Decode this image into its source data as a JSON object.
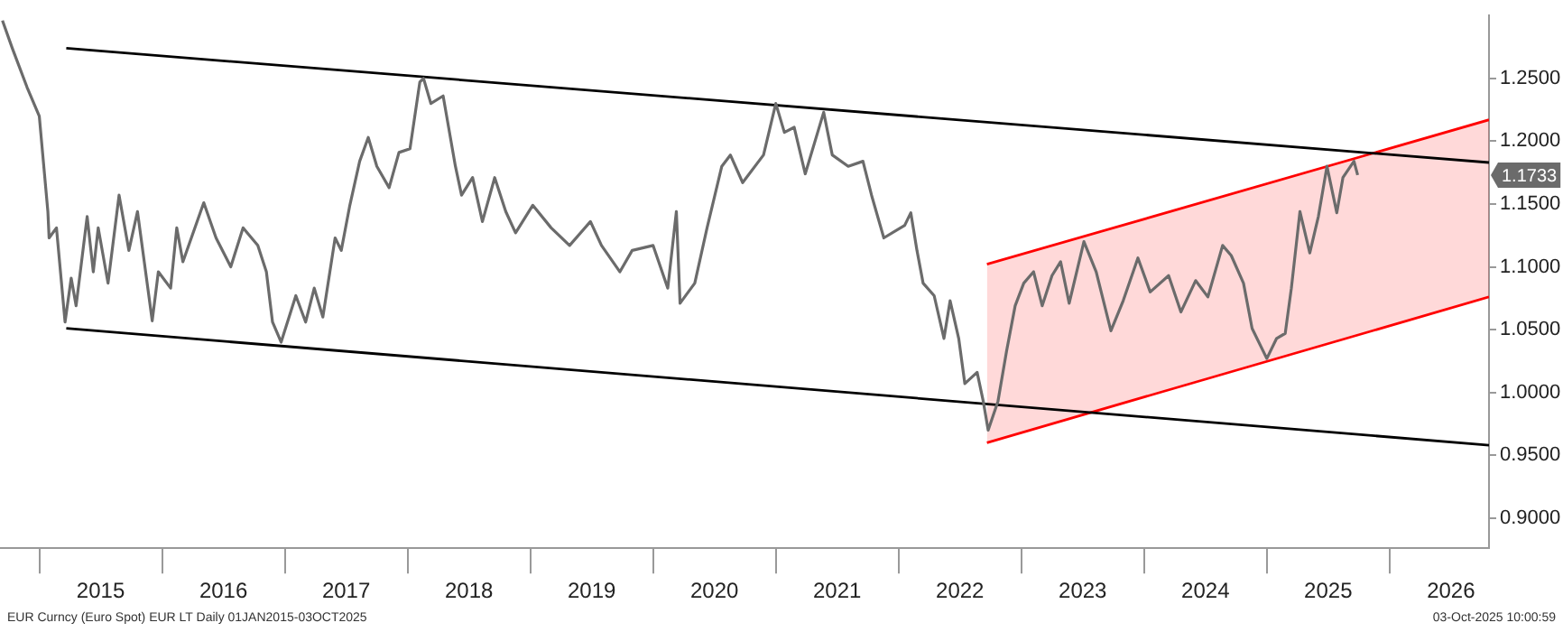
{
  "chart_data": {
    "type": "line",
    "xlim": [
      2014.68,
      2026.81
    ],
    "ylim": [
      0.876,
      1.3
    ],
    "xticks": [
      {
        "value": 2015,
        "label": null
      },
      {
        "value": 2015.5,
        "label": "2015"
      },
      {
        "value": 2016,
        "label": null
      },
      {
        "value": 2016.5,
        "label": "2016"
      },
      {
        "value": 2017,
        "label": null
      },
      {
        "value": 2017.5,
        "label": "2017"
      },
      {
        "value": 2018,
        "label": null
      },
      {
        "value": 2018.5,
        "label": "2018"
      },
      {
        "value": 2019,
        "label": null
      },
      {
        "value": 2019.5,
        "label": "2019"
      },
      {
        "value": 2020,
        "label": null
      },
      {
        "value": 2020.5,
        "label": "2020"
      },
      {
        "value": 2021,
        "label": null
      },
      {
        "value": 2021.5,
        "label": "2021"
      },
      {
        "value": 2022,
        "label": null
      },
      {
        "value": 2022.5,
        "label": "2022"
      },
      {
        "value": 2023,
        "label": null
      },
      {
        "value": 2023.5,
        "label": "2023"
      },
      {
        "value": 2024,
        "label": null
      },
      {
        "value": 2024.5,
        "label": "2024"
      },
      {
        "value": 2025,
        "label": null
      },
      {
        "value": 2025.5,
        "label": "2025"
      },
      {
        "value": 2026,
        "label": null
      },
      {
        "value": 2026.5,
        "label": "2026"
      }
    ],
    "yticks": [
      {
        "value": 0.9,
        "label": "0.9000"
      },
      {
        "value": 0.95,
        "label": "0.9500"
      },
      {
        "value": 1.0,
        "label": "1.0000"
      },
      {
        "value": 1.05,
        "label": "1.0500"
      },
      {
        "value": 1.1,
        "label": "1.1000"
      },
      {
        "value": 1.15,
        "label": "1.1500"
      },
      {
        "value": 1.2,
        "label": "1.2000"
      },
      {
        "value": 1.25,
        "label": "1.2500"
      }
    ],
    "grid": false,
    "legend": false,
    "marker": "none",
    "line_style": "solid",
    "series": [
      {
        "color": "#6b6b6b",
        "x": [
          2014.7,
          2014.78,
          2014.9,
          2015.0,
          2015.07,
          2015.08,
          2015.14,
          2015.21,
          2015.26,
          2015.3,
          2015.39,
          2015.44,
          2015.48,
          2015.56,
          2015.65,
          2015.73,
          2015.8,
          2015.92,
          2015.97,
          2016.07,
          2016.12,
          2016.17,
          2016.34,
          2016.44,
          2016.56,
          2016.66,
          2016.78,
          2016.85,
          2016.9,
          2016.97,
          2017.09,
          2017.17,
          2017.24,
          2017.31,
          2017.41,
          2017.46,
          2017.53,
          2017.61,
          2017.68,
          2017.75,
          2017.85,
          2017.93,
          2018.02,
          2018.1,
          2018.13,
          2018.19,
          2018.29,
          2018.39,
          2018.44,
          2018.53,
          2018.61,
          2018.71,
          2018.8,
          2018.88,
          2019.02,
          2019.17,
          2019.32,
          2019.49,
          2019.58,
          2019.73,
          2019.83,
          2020.0,
          2020.12,
          2020.19,
          2020.22,
          2020.34,
          2020.44,
          2020.56,
          2020.63,
          2020.73,
          2020.9,
          2021.0,
          2021.07,
          2021.15,
          2021.24,
          2021.39,
          2021.46,
          2021.59,
          2021.71,
          2021.78,
          2021.88,
          2022.05,
          2022.1,
          2022.15,
          2022.2,
          2022.29,
          2022.37,
          2022.42,
          2022.49,
          2022.54,
          2022.64,
          2022.69,
          2022.73,
          2022.81,
          2022.88,
          2022.95,
          2023.02,
          2023.1,
          2023.17,
          2023.25,
          2023.32,
          2023.39,
          2023.51,
          2023.61,
          2023.73,
          2023.83,
          2023.95,
          2024.05,
          2024.2,
          2024.3,
          2024.42,
          2024.52,
          2024.64,
          2024.71,
          2024.81,
          2024.88,
          2025.0,
          2025.08,
          2025.15,
          2025.2,
          2025.27,
          2025.35,
          2025.42,
          2025.49,
          2025.57,
          2025.62,
          2025.71,
          2025.74
        ],
        "values": [
          1.296,
          1.274,
          1.243,
          1.22,
          1.144,
          1.123,
          1.131,
          1.056,
          1.091,
          1.069,
          1.14,
          1.096,
          1.131,
          1.087,
          1.157,
          1.113,
          1.144,
          1.057,
          1.096,
          1.083,
          1.131,
          1.104,
          1.151,
          1.123,
          1.1,
          1.131,
          1.117,
          1.096,
          1.056,
          1.04,
          1.077,
          1.056,
          1.083,
          1.06,
          1.123,
          1.113,
          1.149,
          1.184,
          1.203,
          1.18,
          1.163,
          1.191,
          1.194,
          1.247,
          1.25,
          1.23,
          1.236,
          1.18,
          1.157,
          1.171,
          1.136,
          1.171,
          1.144,
          1.127,
          1.149,
          1.131,
          1.117,
          1.136,
          1.117,
          1.096,
          1.113,
          1.117,
          1.083,
          1.144,
          1.071,
          1.087,
          1.131,
          1.18,
          1.189,
          1.167,
          1.189,
          1.23,
          1.207,
          1.211,
          1.174,
          1.223,
          1.189,
          1.18,
          1.184,
          1.157,
          1.123,
          1.133,
          1.143,
          1.113,
          1.087,
          1.077,
          1.043,
          1.073,
          1.043,
          1.007,
          1.016,
          0.993,
          0.97,
          0.993,
          1.033,
          1.069,
          1.087,
          1.096,
          1.069,
          1.093,
          1.104,
          1.071,
          1.12,
          1.096,
          1.049,
          1.073,
          1.107,
          1.08,
          1.093,
          1.064,
          1.089,
          1.076,
          1.117,
          1.109,
          1.087,
          1.051,
          1.027,
          1.043,
          1.047,
          1.083,
          1.144,
          1.111,
          1.14,
          1.18,
          1.143,
          1.171,
          1.184,
          1.173
        ]
      },
      {
        "color": "#000000",
        "x": [
          2015.22,
          2026.81
        ],
        "values": [
          1.274,
          1.183
        ]
      },
      {
        "color": "#000000",
        "x": [
          2015.22,
          2026.81
        ],
        "values": [
          1.051,
          0.958
        ]
      },
      {
        "color": "#ff0000",
        "x": [
          2022.72,
          2026.81
        ],
        "values": [
          1.102,
          1.217
        ],
        "lower": [
          0.96,
          1.076
        ],
        "upper": [
          1.102,
          1.217
        ]
      },
      {
        "color": "#ff0000",
        "x": [
          2022.72,
          2026.81
        ],
        "values": [
          0.96,
          1.076
        ]
      }
    ],
    "annotations": [
      "1.1733",
      "EUR Curncy (Euro Spot) EUR LT Daily 01JAN2015-03OCT2025",
      "03-Oct-2025 10:00:59"
    ]
  }
}
